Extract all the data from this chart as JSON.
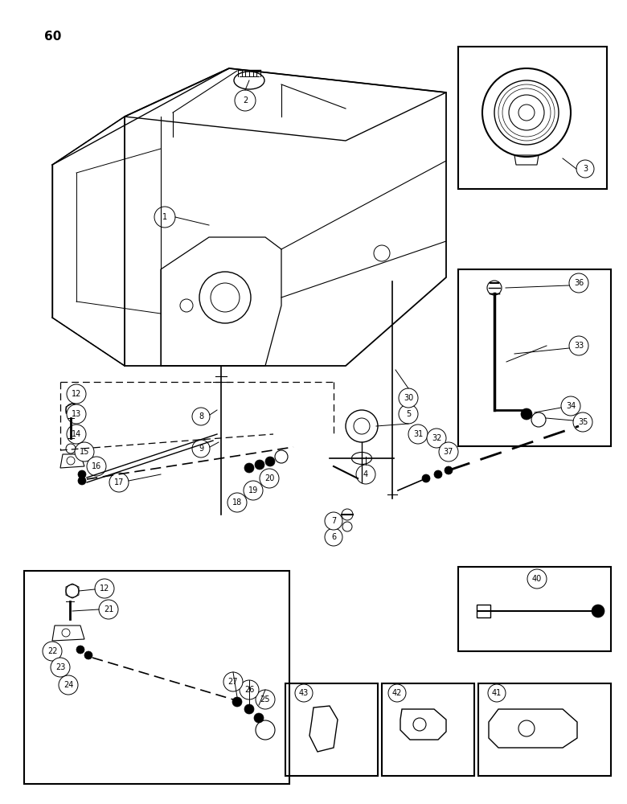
{
  "page_number": "60",
  "bg_color": "#ffffff",
  "line_color": "#000000",
  "fig_width": 7.8,
  "fig_height": 10.0,
  "dpi": 100
}
